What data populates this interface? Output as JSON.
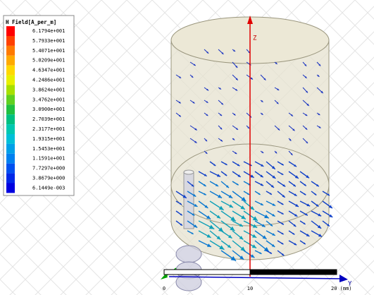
{
  "legend": {
    "title": "H Field[A_per_m]",
    "items": [
      {
        "label": "6.1794e+001",
        "color": "#ff0000"
      },
      {
        "label": "5.7933e+001",
        "color": "#ff4000"
      },
      {
        "label": "5.4071e+001",
        "color": "#ff7a00"
      },
      {
        "label": "5.0209e+001",
        "color": "#ffaa00"
      },
      {
        "label": "4.6347e+001",
        "color": "#ffd800"
      },
      {
        "label": "4.2486e+001",
        "color": "#e8f000"
      },
      {
        "label": "3.8624e+001",
        "color": "#a8e000"
      },
      {
        "label": "3.4762e+001",
        "color": "#60d020"
      },
      {
        "label": "3.0900e+001",
        "color": "#20c040"
      },
      {
        "label": "2.7039e+001",
        "color": "#00c080"
      },
      {
        "label": "2.3177e+001",
        "color": "#00c8b0"
      },
      {
        "label": "1.9315e+001",
        "color": "#00c0d8"
      },
      {
        "label": "1.5453e+001",
        "color": "#00a0e8"
      },
      {
        "label": "1.1591e+001",
        "color": "#0080f0"
      },
      {
        "label": "7.7297e+000",
        "color": "#0050f0"
      },
      {
        "label": "3.8679e+000",
        "color": "#0028e8"
      },
      {
        "label": "6.1449e-003",
        "color": "#0000e0"
      }
    ]
  },
  "axes": {
    "z": "Z",
    "y": "Y"
  },
  "scale": {
    "labels": [
      "0",
      "10",
      "20 (mm)"
    ]
  }
}
